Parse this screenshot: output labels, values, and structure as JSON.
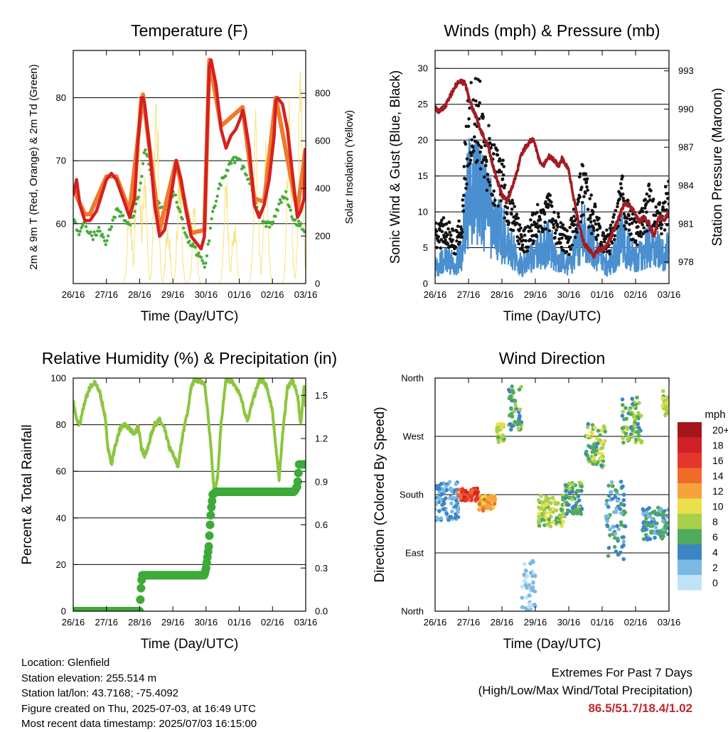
{
  "panels": {
    "temperature": {
      "title": "Temperature (F)",
      "xlabel": "Time (Day/UTC)",
      "ylabel_left": "2m & 9m T (Red, Orange) & 2m Td (Green)",
      "ylabel_right": "Solar Insolation (Yellow)"
    },
    "winds": {
      "title": "Winds (mph) & Pressure (mb)",
      "xlabel": "Time (Day/UTC)",
      "ylabel_left": "Sonic Wind & Gust (Blue, Black)",
      "ylabel_right": "Station Pressure (Maroon)"
    },
    "humidity": {
      "title": "Relative Humidity (%) & Precipitation (in)",
      "xlabel": "Time (Day/UTC)",
      "ylabel_left": "Percent & Total Rainfall"
    },
    "direction": {
      "title": "Wind Direction",
      "xlabel": "Time (Day/UTC)",
      "ylabel_left": "Direction (Colored By Speed)"
    }
  },
  "colorbar": {
    "title": "mph",
    "labels": [
      "20+",
      "18",
      "16",
      "14",
      "12",
      "10",
      "8",
      "6",
      "4",
      "2",
      "0"
    ],
    "colors": [
      "#a4161b",
      "#cf2127",
      "#e6352b",
      "#f06a2a",
      "#f7a23b",
      "#e9e04a",
      "#a9d04a",
      "#4faa5e",
      "#3d84c4",
      "#7bb8e4",
      "#bfe3f6"
    ]
  },
  "footer": {
    "location": "Location: Glenfield",
    "elevation": "Station elevation: 255.514 m",
    "latlon": "Station lat/lon: 43.7168; -75.4092",
    "created": "Figure created on Thu, 2025-07-03, at 16:49 UTC",
    "recent": "Most recent data timestamp: 2025/07/03 16:15:00"
  },
  "extremes": {
    "line1": "Extremes For Past 7 Days",
    "line2": "(High/Low/Max Wind/Total Precipitation)",
    "values": "86.5/51.7/18.4/1.02"
  },
  "chart_data": [
    {
      "type": "line",
      "title": "Temperature (F)",
      "xlabel": "Time (Day/UTC)",
      "x_ticks": [
        "26/16",
        "27/16",
        "28/16",
        "29/16",
        "30/16",
        "01/16",
        "02/16",
        "03/16"
      ],
      "xlim": [
        0,
        7
      ],
      "ylim": [
        50.5,
        87.5
      ],
      "y_ticks": [
        60,
        70,
        80
      ],
      "y2lim": [
        0,
        980
      ],
      "y2_ticks": [
        0,
        200,
        400,
        600,
        800
      ],
      "series": [
        {
          "name": "2m T",
          "color": "#d62020",
          "axis": "left",
          "x": [
            0,
            0.1,
            0.2,
            0.35,
            0.5,
            0.7,
            0.85,
            1.0,
            1.15,
            1.3,
            1.5,
            1.7,
            1.85,
            1.95,
            2.05,
            2.1,
            2.15,
            2.3,
            2.45,
            2.6,
            2.75,
            2.9,
            3.05,
            3.1,
            3.15,
            3.25,
            3.4,
            3.55,
            3.7,
            3.85,
            3.95,
            4.05,
            4.1,
            4.15,
            4.3,
            4.45,
            4.6,
            4.75,
            4.9,
            5.05,
            5.1,
            5.15,
            5.3,
            5.45,
            5.6,
            5.75,
            5.9,
            6.05,
            6.1,
            6.15,
            6.3,
            6.45,
            6.6,
            6.75,
            6.85,
            6.95,
            7.0
          ],
          "y": [
            64.5,
            67,
            63,
            60.5,
            60.5,
            62,
            64.5,
            67,
            68,
            67,
            64,
            61,
            64,
            73,
            80,
            80,
            79,
            72,
            63,
            58,
            59,
            63,
            68,
            70,
            69,
            67,
            62,
            58,
            57,
            56,
            58,
            78,
            85,
            86,
            82,
            75,
            72,
            74,
            75,
            77,
            78,
            77,
            72,
            63,
            61,
            63,
            67,
            74,
            79.5,
            80,
            79,
            75,
            68,
            61,
            62,
            64,
            72
          ]
        },
        {
          "name": "9m T",
          "color": "#f07a2c",
          "axis": "left",
          "x": [
            0,
            0.35,
            0.5,
            1.0,
            1.3,
            1.7,
            2.1,
            2.6,
            3.1,
            3.55,
            3.95,
            4.1,
            4.45,
            5.1,
            5.45,
            5.75,
            6.1,
            6.75,
            7.0
          ],
          "y": [
            65.5,
            61.5,
            61.5,
            67.5,
            67.5,
            62,
            80.5,
            59,
            70,
            58.5,
            59,
            86,
            75.5,
            78.5,
            64,
            63.5,
            80,
            62,
            72
          ]
        },
        {
          "name": "2m Td",
          "color": "#45ad3a",
          "axis": "left",
          "x": [
            0,
            0.15,
            0.3,
            0.45,
            0.6,
            0.75,
            0.9,
            1.0,
            1.1,
            1.3,
            1.5,
            1.7,
            1.85,
            1.95,
            2.05,
            2.15,
            2.3,
            2.5,
            2.7,
            2.85,
            3.0,
            3.15,
            3.3,
            3.5,
            3.65,
            3.8,
            3.95,
            4.05,
            4.2,
            4.4,
            4.6,
            4.8,
            5.0,
            5.2,
            5.4,
            5.6,
            5.8,
            6.0,
            6.2,
            6.4,
            6.6,
            6.8,
            7.0
          ],
          "y": [
            61,
            58.5,
            60,
            59,
            58,
            59,
            58,
            57,
            59,
            62,
            61,
            60,
            62,
            64,
            67,
            72,
            69,
            64,
            62,
            63,
            65,
            63,
            60,
            57,
            56,
            55,
            53,
            56,
            62,
            66,
            68,
            70,
            70,
            68,
            65,
            62,
            60,
            60,
            63,
            65,
            61,
            60,
            59
          ]
        },
        {
          "name": "Solar Insolation",
          "color": "#f6e27a",
          "axis": "right",
          "peaks_x": [
            1.7,
            1.95,
            2.15,
            2.5,
            2.85,
            3.2,
            3.65,
            4.6,
            4.85,
            5.5,
            5.8,
            6.5,
            6.85
          ],
          "peaks_y": [
            380,
            900,
            480,
            980,
            300,
            560,
            350,
            500,
            300,
            800,
            630,
            820,
            960
          ]
        }
      ]
    },
    {
      "type": "scatter",
      "title": "Winds (mph) & Pressure (mb)",
      "xlabel": "Time (Day/UTC)",
      "x_ticks": [
        "26/16",
        "27/16",
        "28/16",
        "29/16",
        "30/16",
        "01/16",
        "02/16",
        "03/16"
      ],
      "xlim": [
        0,
        7
      ],
      "ylim": [
        0,
        32.5
      ],
      "y_ticks": [
        0,
        5,
        10,
        15,
        20,
        25,
        30
      ],
      "y2lim": [
        976.3,
        994.6
      ],
      "y2_ticks": [
        978,
        981,
        984,
        987,
        990,
        993
      ],
      "series": [
        {
          "name": "Sonic Wind",
          "color": "#4a8fd0",
          "axis": "left",
          "x": [
            0,
            0.3,
            0.6,
            0.8,
            0.9,
            1.0,
            1.2,
            1.4,
            1.6,
            1.8,
            2.0,
            2.2,
            2.4,
            2.6,
            2.8,
            3.0,
            3.2,
            3.4,
            3.6,
            3.8,
            4.0,
            4.2,
            4.4,
            4.6,
            4.8,
            5.0,
            5.2,
            5.4,
            5.6,
            5.8,
            6.0,
            6.2,
            6.4,
            6.6,
            6.8,
            7.0
          ],
          "y": [
            3,
            4,
            3.5,
            5,
            11,
            16,
            17,
            15,
            12,
            10,
            9,
            7,
            5,
            3,
            4,
            5,
            6,
            7,
            5,
            4,
            3,
            6,
            9,
            8,
            5,
            4,
            3,
            5,
            8,
            6,
            4,
            5,
            7,
            6,
            5,
            6
          ]
        },
        {
          "name": "Gust",
          "color": "#111111",
          "axis": "left",
          "x": [
            0,
            0.3,
            0.6,
            0.8,
            0.9,
            1.0,
            1.2,
            1.4,
            1.6,
            1.8,
            2.0,
            2.2,
            2.4,
            2.6,
            2.8,
            3.0,
            3.2,
            3.4,
            3.6,
            3.8,
            4.0,
            4.2,
            4.4,
            4.6,
            4.8,
            5.0,
            5.2,
            5.4,
            5.6,
            5.8,
            6.0,
            6.2,
            6.4,
            6.6,
            6.8,
            7.0
          ],
          "y": [
            7,
            8,
            6,
            9,
            18,
            24,
            26,
            23,
            19,
            16,
            15,
            12,
            9,
            6,
            7,
            9,
            10,
            11,
            9,
            7,
            6,
            10,
            14,
            12,
            9,
            7,
            6,
            9,
            13,
            10,
            8,
            9,
            12,
            10,
            9,
            14
          ]
        },
        {
          "name": "Station Pressure",
          "color": "#a11d23",
          "axis": "right",
          "x": [
            0,
            0.1,
            0.2,
            0.3,
            0.45,
            0.6,
            0.75,
            0.9,
            1.0,
            1.1,
            1.2,
            1.35,
            1.5,
            1.6,
            1.7,
            1.85,
            2.0,
            2.15,
            2.3,
            2.45,
            2.55,
            2.7,
            2.85,
            2.95,
            3.05,
            3.15,
            3.25,
            3.4,
            3.55,
            3.7,
            3.8,
            3.9,
            4.0,
            4.15,
            4.3,
            4.45,
            4.6,
            4.75,
            4.9,
            5.05,
            5.2,
            5.35,
            5.5,
            5.65,
            5.8,
            5.95,
            6.1,
            6.25,
            6.4,
            6.55,
            6.7,
            6.85,
            7.0
          ],
          "y": [
            990.2,
            989.8,
            990,
            990.2,
            991,
            991.8,
            992.2,
            992,
            991,
            990.2,
            989.6,
            988.4,
            987.6,
            987,
            985.8,
            984.5,
            983.2,
            982.8,
            983.8,
            985,
            986.2,
            987,
            987.5,
            987.6,
            986.6,
            985.8,
            985.6,
            986.3,
            986,
            985.6,
            986.1,
            985.7,
            985.2,
            983,
            981,
            979.5,
            979,
            978.5,
            979,
            979,
            979.6,
            980.5,
            981.5,
            982.5,
            982.5,
            982,
            981.2,
            981.5,
            981,
            980,
            981.5,
            981.3,
            982
          ]
        }
      ]
    },
    {
      "type": "line",
      "title": "Relative Humidity (%) & Precipitation (in)",
      "xlabel": "Time (Day/UTC)",
      "x_ticks": [
        "26/16",
        "27/16",
        "28/16",
        "29/16",
        "30/16",
        "01/16",
        "02/16",
        "03/16"
      ],
      "xlim": [
        0,
        7
      ],
      "ylim": [
        0,
        100
      ],
      "y_ticks": [
        0,
        20,
        40,
        60,
        80,
        100
      ],
      "y2lim": [
        0,
        1.62
      ],
      "y2_ticks": [
        0.0,
        0.3,
        0.6,
        0.9,
        1.2,
        1.5
      ],
      "series": [
        {
          "name": "Relative Humidity",
          "color": "#8cc63f",
          "axis": "left",
          "x": [
            0,
            0.1,
            0.2,
            0.35,
            0.5,
            0.65,
            0.8,
            0.95,
            1.05,
            1.15,
            1.25,
            1.4,
            1.55,
            1.7,
            1.85,
            1.95,
            2.05,
            2.15,
            2.25,
            2.35,
            2.45,
            2.6,
            2.75,
            2.9,
            3.05,
            3.15,
            3.3,
            3.45,
            3.55,
            3.65,
            3.8,
            3.95,
            4.05,
            4.15,
            4.25,
            4.35,
            4.45,
            4.6,
            4.75,
            4.9,
            5.05,
            5.15,
            5.25,
            5.4,
            5.6,
            5.7,
            5.8,
            5.9,
            6.0,
            6.1,
            6.2,
            6.3,
            6.45,
            6.6,
            6.75,
            6.85,
            6.95,
            7.0
          ],
          "y": [
            90,
            82,
            80,
            90,
            96,
            98,
            94,
            84,
            70,
            63,
            70,
            78,
            80,
            78,
            76,
            80,
            70,
            67,
            70,
            76,
            80,
            82,
            78,
            70,
            66,
            62,
            76,
            86,
            96,
            99,
            99,
            98,
            85,
            70,
            50,
            58,
            80,
            99,
            99,
            96,
            92,
            86,
            82,
            90,
            99,
            99,
            97,
            92,
            86,
            70,
            57,
            75,
            96,
            99,
            93,
            80,
            96,
            88
          ]
        },
        {
          "name": "Total Rainfall",
          "color": "#3daa38",
          "axis": "right",
          "x": [
            0,
            2.0,
            2.05,
            2.08,
            2.1,
            3.4,
            3.95,
            4.0,
            4.08,
            4.12,
            4.15,
            4.2,
            4.3,
            6.65,
            6.75,
            6.8,
            7.0
          ],
          "y": [
            0,
            0,
            0.2,
            0.25,
            0.25,
            0.25,
            0.25,
            0.3,
            0.45,
            0.6,
            0.7,
            0.81,
            0.83,
            0.83,
            0.87,
            1.02,
            1.02
          ]
        }
      ]
    },
    {
      "type": "scatter",
      "title": "Wind Direction",
      "xlabel": "Time (Day/UTC)",
      "x_ticks": [
        "26/16",
        "27/16",
        "28/16",
        "29/16",
        "30/16",
        "01/16",
        "02/16",
        "03/16"
      ],
      "xlim": [
        0,
        7
      ],
      "ylim": [
        0,
        360
      ],
      "y_ticks": [
        "North",
        "East",
        "South",
        "West",
        "North"
      ],
      "color_variable": "speed (mph)",
      "clusters": [
        {
          "x": [
            0,
            0.7
          ],
          "dir": [
            140,
            200
          ],
          "speed": [
            1,
            5
          ]
        },
        {
          "x": [
            0.7,
            1.3
          ],
          "dir": [
            170,
            190
          ],
          "speed": [
            14,
            18
          ]
        },
        {
          "x": [
            1.3,
            1.8
          ],
          "dir": [
            155,
            180
          ],
          "speed": [
            10,
            14
          ]
        },
        {
          "x": [
            1.85,
            2.1
          ],
          "dir": [
            260,
            290
          ],
          "speed": [
            6,
            10
          ]
        },
        {
          "x": [
            2.2,
            2.6
          ],
          "dir": [
            280,
            360
          ],
          "speed": [
            3,
            8
          ]
        },
        {
          "x": [
            2.6,
            3.0
          ],
          "dir": [
            0,
            80
          ],
          "speed": [
            0,
            3
          ]
        },
        {
          "x": [
            3.1,
            3.9
          ],
          "dir": [
            130,
            180
          ],
          "speed": [
            5,
            10
          ]
        },
        {
          "x": [
            3.9,
            4.4
          ],
          "dir": [
            150,
            200
          ],
          "speed": [
            3,
            8
          ]
        },
        {
          "x": [
            4.5,
            5.1
          ],
          "dir": [
            220,
            290
          ],
          "speed": [
            4,
            11
          ]
        },
        {
          "x": [
            5.1,
            5.7
          ],
          "dir": [
            80,
            200
          ],
          "speed": [
            2,
            7
          ]
        },
        {
          "x": [
            5.6,
            6.2
          ],
          "dir": [
            260,
            330
          ],
          "speed": [
            4,
            9
          ]
        },
        {
          "x": [
            6.2,
            7.0
          ],
          "dir": [
            110,
            160
          ],
          "speed": [
            2,
            7
          ]
        },
        {
          "x": [
            6.8,
            7.0
          ],
          "dir": [
            300,
            340
          ],
          "speed": [
            6,
            10
          ]
        }
      ]
    }
  ]
}
